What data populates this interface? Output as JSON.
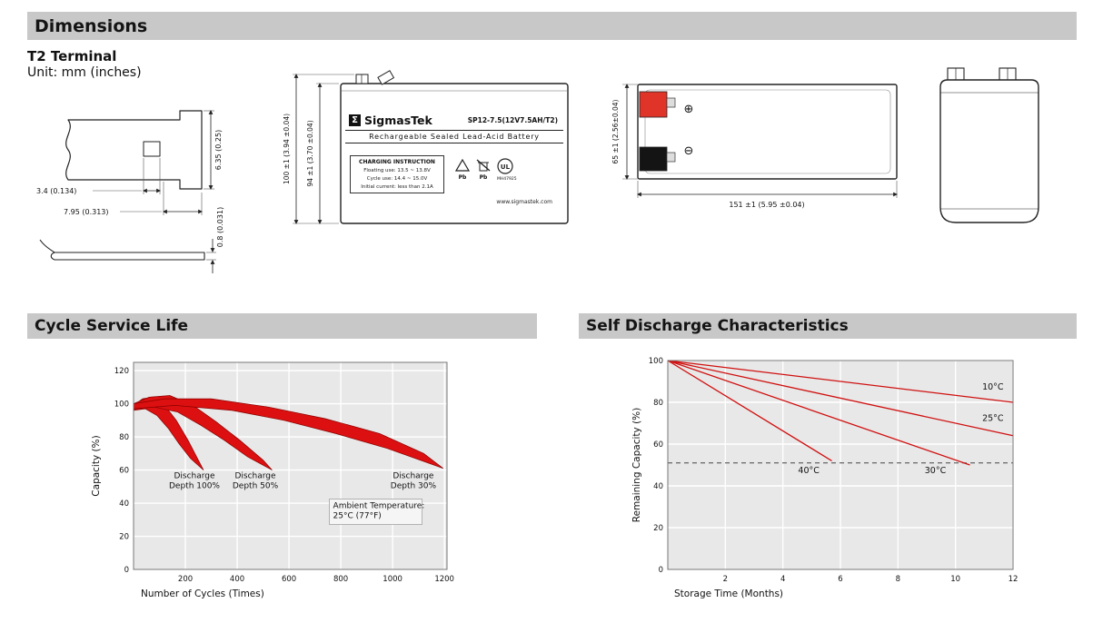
{
  "header": {
    "title": "Dimensions"
  },
  "terminal": {
    "title": "T2 Terminal",
    "unit": "Unit: mm (inches)"
  },
  "terminal_drawing": {
    "dim_width": "3.4 (0.134)",
    "dim_pitch": "7.95 (0.313)",
    "dim_height": "6.35 (0.25)",
    "dim_thickness": "0.8 (0.031)"
  },
  "front_view": {
    "dim_total_height": "100 ±1 (3.94 ±0.04)",
    "dim_case_height": "94 ±1 (3.70 ±0.04)",
    "sigma": "Σ",
    "brand": "SigmasTek",
    "model": "SP12-7.5(12V7.5AH/T2)",
    "subtitle": "Rechargeable Sealed Lead-Acid Battery",
    "charging": {
      "title": "CHARGING INSTRUCTION",
      "line1": "Floating use: 13.5 ~ 13.8V",
      "line2": "Cycle use: 14.4 ~ 15.0V",
      "line3": "Initial current: less than 2.1A"
    },
    "pb1": "Pb",
    "pb2": "Pb",
    "ul": "UL",
    "ul_code": "MH47925",
    "website": "www.sigmastek.com"
  },
  "side_view": {
    "dim_height": "65 ±1 (2.56±0.04)",
    "dim_length": "151 ±1 (5.95 ±0.04)",
    "positive": "⊕",
    "negative": "⊖"
  },
  "sections": {
    "cycle": "Cycle Service Life",
    "self_discharge": "Self Discharge Characteristics"
  },
  "chart_data": [
    {
      "type": "area",
      "title": "Cycle Service Life",
      "xlabel": "Number of Cycles (Times)",
      "ylabel": "Capacity (%)",
      "xlim": [
        0,
        1210
      ],
      "ylim": [
        0,
        125
      ],
      "xticks": [
        200,
        400,
        600,
        800,
        1000,
        1200
      ],
      "yticks": [
        0,
        20,
        40,
        60,
        80,
        100,
        120
      ],
      "grid": true,
      "color": "#dc1010",
      "bands": [
        {
          "name": "Discharge Depth 100%",
          "upper": [
            [
              0,
              99
            ],
            [
              35,
              103
            ],
            [
              75,
              104
            ],
            [
              120,
              99
            ],
            [
              165,
              90
            ],
            [
              210,
              78
            ],
            [
              250,
              66
            ],
            [
              270,
              60
            ]
          ],
          "lower": [
            [
              0,
              96
            ],
            [
              45,
              97
            ],
            [
              90,
              93
            ],
            [
              135,
              85
            ],
            [
              175,
              76
            ],
            [
              220,
              67
            ],
            [
              270,
              60
            ]
          ]
        },
        {
          "name": "Discharge Depth 50%",
          "upper": [
            [
              0,
              100
            ],
            [
              60,
              104
            ],
            [
              140,
              105
            ],
            [
              230,
              99
            ],
            [
              320,
              89
            ],
            [
              410,
              78
            ],
            [
              500,
              66
            ],
            [
              535,
              60
            ]
          ],
          "lower": [
            [
              0,
              97
            ],
            [
              80,
              98
            ],
            [
              170,
              95
            ],
            [
              260,
              87
            ],
            [
              350,
              78
            ],
            [
              440,
              68
            ],
            [
              535,
              60
            ]
          ]
        },
        {
          "name": "Discharge Depth 30%",
          "upper": [
            [
              0,
              100
            ],
            [
              120,
              103
            ],
            [
              300,
              103
            ],
            [
              520,
              98
            ],
            [
              740,
              91
            ],
            [
              950,
              82
            ],
            [
              1120,
              70
            ],
            [
              1195,
              61
            ]
          ],
          "lower": [
            [
              0,
              97
            ],
            [
              160,
              99
            ],
            [
              380,
              96
            ],
            [
              580,
              90
            ],
            [
              780,
              82
            ],
            [
              980,
              73
            ],
            [
              1195,
              61
            ]
          ]
        }
      ],
      "annotations": [
        {
          "lines": [
            "Discharge",
            "Depth 100%"
          ],
          "x": 235,
          "y": 55
        },
        {
          "lines": [
            "Discharge",
            "Depth 50%"
          ],
          "x": 470,
          "y": 55
        },
        {
          "lines": [
            "Discharge",
            "Depth 30%"
          ],
          "x": 1080,
          "y": 55
        },
        {
          "lines": [
            "Ambient Temperature:",
            "25°C (77°F)"
          ],
          "x": 770,
          "y": 37,
          "anchor": "start",
          "box": true
        }
      ]
    },
    {
      "type": "line",
      "title": "Self Discharge Characteristics",
      "xlabel": "Storage Time (Months)",
      "ylabel": "Remaining Capacity (%)",
      "xlim": [
        0,
        12
      ],
      "ylim": [
        0,
        100
      ],
      "xticks": [
        2,
        4,
        6,
        8,
        10,
        12
      ],
      "yticks": [
        0,
        20,
        40,
        60,
        80,
        100
      ],
      "grid": true,
      "color": "#d01010",
      "dashed_y": 51,
      "series": [
        {
          "name": "10°C",
          "points": [
            [
              0,
              100
            ],
            [
              12,
              80
            ]
          ],
          "label_pos": [
            11.3,
            86
          ]
        },
        {
          "name": "25°C",
          "points": [
            [
              0,
              100
            ],
            [
              12,
              64
            ]
          ],
          "label_pos": [
            11.3,
            71
          ]
        },
        {
          "name": "30°C",
          "points": [
            [
              0,
              100
            ],
            [
              10.5,
              50
            ]
          ],
          "label_pos": [
            9.3,
            46
          ]
        },
        {
          "name": "40°C",
          "points": [
            [
              0,
              100
            ],
            [
              5.7,
              52
            ]
          ],
          "label_pos": [
            4.9,
            46
          ]
        }
      ]
    }
  ]
}
